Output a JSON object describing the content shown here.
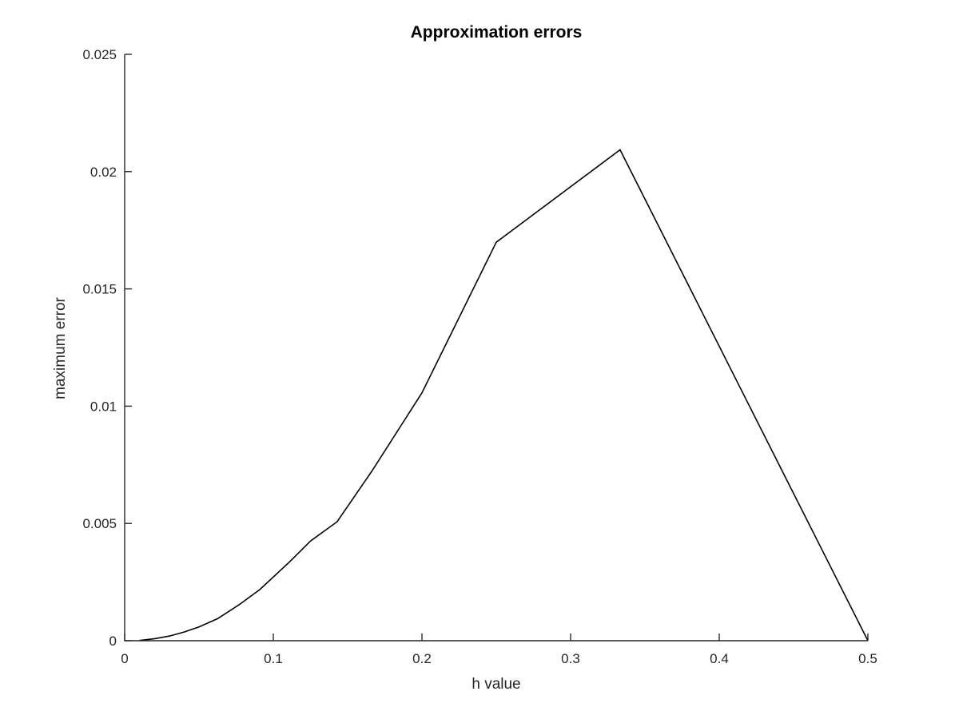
{
  "chart_data": {
    "type": "line",
    "title": "Approximation errors",
    "xlabel": "h value",
    "ylabel": "maximum error",
    "xlim": [
      0,
      0.5
    ],
    "ylim": [
      0,
      0.025
    ],
    "grid": false,
    "xticks": [
      0,
      0.1,
      0.2,
      0.3,
      0.4,
      0.5
    ],
    "xtick_labels": [
      "0",
      "0.1",
      "0.2",
      "0.3",
      "0.4",
      "0.5"
    ],
    "yticks": [
      0,
      0.005,
      0.01,
      0.015,
      0.02,
      0.025
    ],
    "ytick_labels": [
      "0",
      "0.005",
      "0.01",
      "0.015",
      "0.02",
      "0.025"
    ],
    "series": [
      {
        "color": "#000000",
        "x": [
          0.01,
          0.0204,
          0.0303,
          0.04,
          0.05,
          0.0625,
          0.0769,
          0.0909,
          0.1111,
          0.125,
          0.1429,
          0.1667,
          0.2,
          0.25,
          0.3333,
          0.5
        ],
        "y": [
          1e-05,
          9e-05,
          0.0002,
          0.00037,
          0.00059,
          0.00094,
          0.00153,
          0.00218,
          0.00337,
          0.00425,
          0.00507,
          0.00727,
          0.01057,
          0.01699,
          0.02093,
          0.0
        ]
      }
    ]
  }
}
